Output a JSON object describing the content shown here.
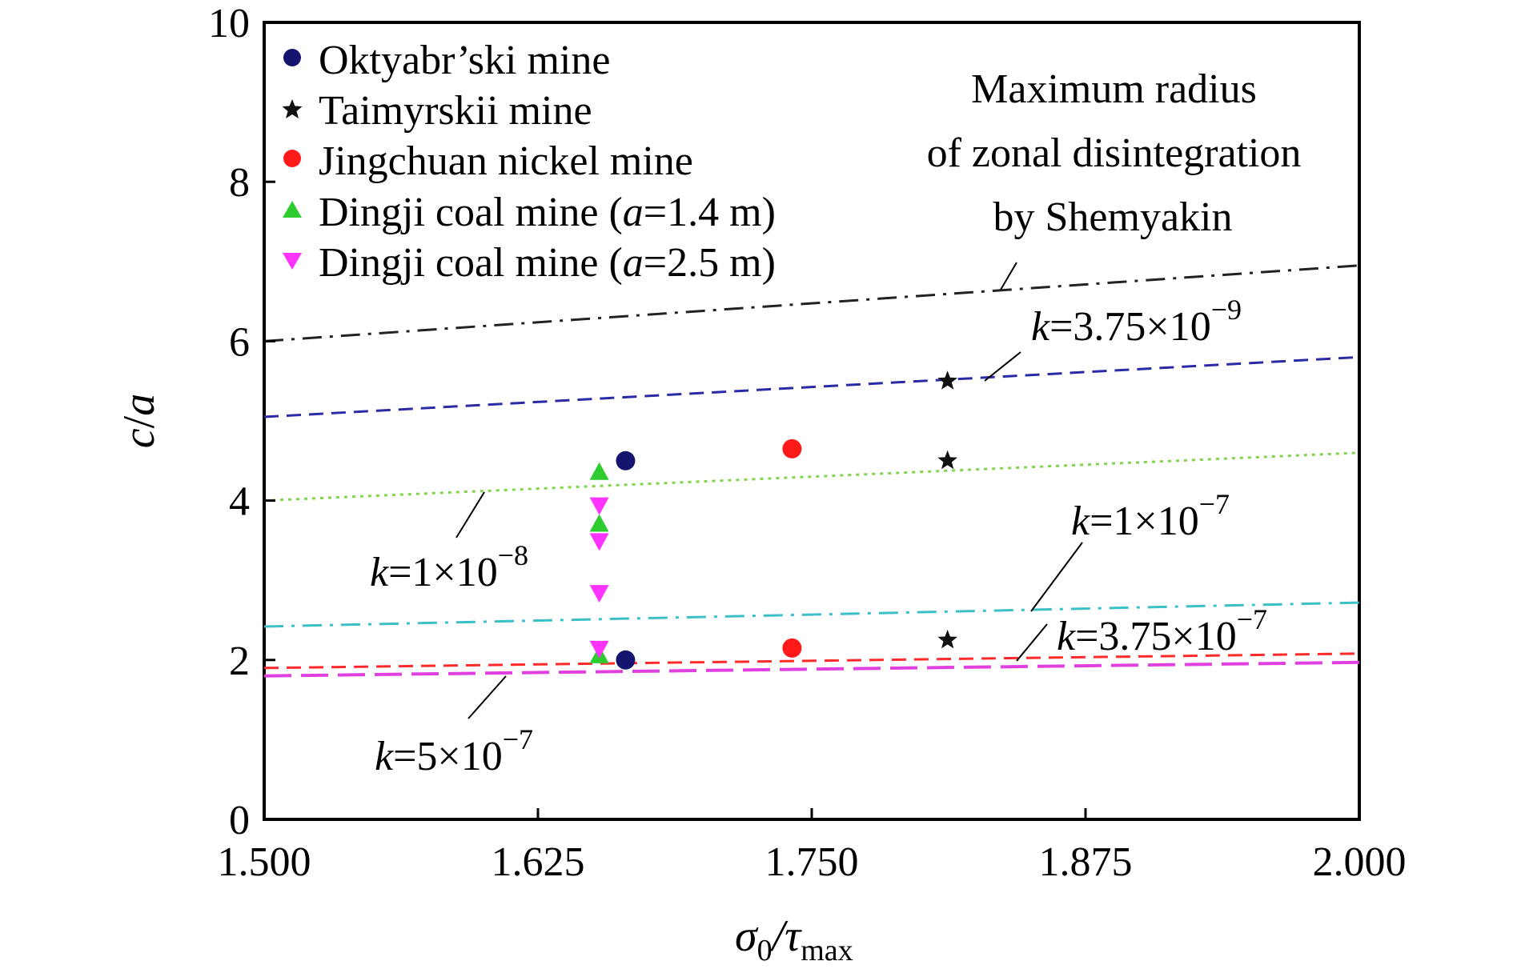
{
  "chart_data": {
    "type": "scatter",
    "xlabel": "σ0/τmax",
    "ylabel": "c/a",
    "xlim": [
      1.5,
      2.0
    ],
    "ylim": [
      0,
      10
    ],
    "xticks": [
      "1.500",
      "1.625",
      "1.750",
      "1.875",
      "2.000"
    ],
    "yticks": [
      "0",
      "2",
      "4",
      "6",
      "8",
      "10"
    ],
    "grid": false,
    "legend_position": "top-left",
    "series": [
      {
        "name": "Oktyabr’ski mine",
        "marker": "circle",
        "color": "#14146e",
        "points": [
          [
            1.665,
            4.5
          ],
          [
            1.665,
            2.0
          ]
        ]
      },
      {
        "name": "Taimyrskii mine",
        "marker": "star",
        "color": "#111111",
        "points": [
          [
            1.812,
            5.5
          ],
          [
            1.812,
            4.5
          ],
          [
            1.812,
            2.25
          ]
        ]
      },
      {
        "name": "Jingchuan nickel mine",
        "marker": "circle",
        "color": "#ff1a1a",
        "points": [
          [
            1.741,
            4.65
          ],
          [
            1.741,
            2.15
          ]
        ]
      },
      {
        "name": "Dingji coal mine (a=1.4 m)",
        "marker": "triangle-up",
        "color": "#2ecc2e",
        "points": [
          [
            1.653,
            4.35
          ],
          [
            1.653,
            3.7
          ],
          [
            1.653,
            2.05
          ]
        ]
      },
      {
        "name": "Dingji coal mine (a=2.5 m)",
        "marker": "triangle-down",
        "color": "#ff33ff",
        "points": [
          [
            1.653,
            3.95
          ],
          [
            1.653,
            3.5
          ],
          [
            1.653,
            2.85
          ],
          [
            1.653,
            2.15
          ]
        ]
      }
    ],
    "curves": [
      {
        "label": "Maximum radius of zonal disintegration by Shemyakin",
        "style": "dash-dot",
        "color": "#222222",
        "points": [
          [
            1.5,
            6.0
          ],
          [
            2.0,
            6.95
          ]
        ]
      },
      {
        "label": "k=3.75×10^-9",
        "style": "dash",
        "color": "#2a2aa6",
        "points": [
          [
            1.5,
            5.05
          ],
          [
            2.0,
            5.8
          ]
        ]
      },
      {
        "label": "k=1×10^-8",
        "style": "dot",
        "color": "#7fd64a",
        "points": [
          [
            1.5,
            4.0
          ],
          [
            2.0,
            4.6
          ]
        ]
      },
      {
        "label": "k=1×10^-7",
        "style": "dash-dot",
        "color": "#3cc0c8",
        "points": [
          [
            1.5,
            2.42
          ],
          [
            2.0,
            2.72
          ]
        ]
      },
      {
        "label": "k=3.75×10^-7",
        "style": "dash",
        "color": "#ff2a2a",
        "points": [
          [
            1.5,
            1.9
          ],
          [
            2.0,
            2.08
          ]
        ]
      },
      {
        "label": "k=5×10^-7",
        "style": "long-dash",
        "color": "#e040e0",
        "points": [
          [
            1.5,
            1.8
          ],
          [
            2.0,
            1.97
          ]
        ]
      }
    ],
    "annotations": {
      "shemyakin": [
        "Maximum radius",
        "of zonal disintegration",
        "by Shemyakin"
      ],
      "k1": {
        "k": "k",
        "mid": "=3.75×10",
        "exp": "−9"
      },
      "k2": {
        "k": "k",
        "mid": "=1×10",
        "exp": "−8"
      },
      "k3": {
        "k": "k",
        "mid": "=1×10",
        "exp": "−7"
      },
      "k4": {
        "k": "k",
        "mid": "=3.75×10",
        "exp": "−7"
      },
      "k5": {
        "k": "k",
        "mid": "=5×10",
        "exp": "−7"
      }
    },
    "legend_labels": {
      "s1": "Oktyabr’ski mine",
      "s2": "Taimyrskii mine",
      "s3": "Jingchuan nickel mine",
      "s4_pre": "Dingji coal mine (",
      "s4_var": "a",
      "s4_post": "=1.4 m)",
      "s5_pre": "Dingji coal mine (",
      "s5_var": "a",
      "s5_post": "=2.5 m)"
    },
    "axis_text": {
      "x_sigma": "σ",
      "x_sub0": "0",
      "x_slash_tau": "/τ",
      "x_submax": "max",
      "y_c": "c",
      "y_slash": "/",
      "y_a": "a"
    }
  }
}
